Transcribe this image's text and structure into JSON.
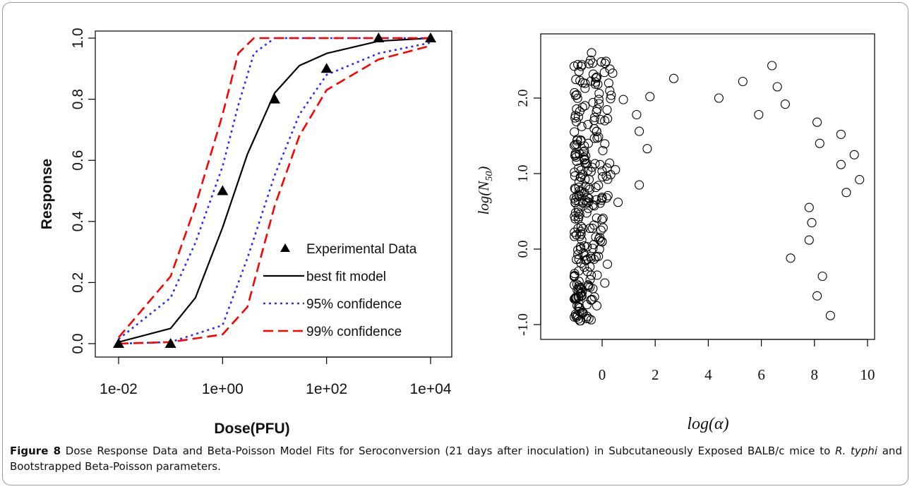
{
  "chart_data": [
    {
      "type": "line",
      "xlabel": "Dose(PFU)",
      "ylabel": "Response",
      "x_scale": "log10",
      "xlim": [
        0.01,
        10000
      ],
      "ylim": [
        0,
        1
      ],
      "x_ticks": [
        "1e-02",
        "1e+00",
        "1e+02",
        "1e+04"
      ],
      "x_tick_values": [
        0.01,
        1,
        100,
        10000
      ],
      "y_ticks": [
        "0.0",
        "0.2",
        "0.4",
        "0.6",
        "0.8",
        "1.0"
      ],
      "y_tick_values": [
        0.0,
        0.2,
        0.4,
        0.6,
        0.8,
        1.0
      ],
      "legend_position": "bottom-right",
      "series": [
        {
          "name": "Experimental Data",
          "style": "triangle-points",
          "color": "#000000",
          "x": [
            0.01,
            0.1,
            1,
            10,
            100,
            1000,
            10000
          ],
          "y": [
            0.0,
            0.0,
            0.5,
            0.8,
            0.9,
            1.0,
            1.0
          ]
        },
        {
          "name": "best fit model",
          "style": "solid",
          "color": "#000000",
          "x": [
            0.01,
            0.1,
            0.3,
            1,
            3,
            10,
            30,
            100,
            1000,
            10000
          ],
          "y": [
            0.005,
            0.05,
            0.15,
            0.38,
            0.62,
            0.82,
            0.91,
            0.95,
            0.99,
            1.0
          ]
        },
        {
          "name": "95% confidence",
          "style": "dotted",
          "color": "#2b2bff",
          "band": "upper",
          "x": [
            0.01,
            0.1,
            0.3,
            1,
            2,
            4,
            10,
            1000,
            10000
          ],
          "y": [
            0.015,
            0.15,
            0.33,
            0.58,
            0.78,
            0.95,
            1.0,
            1.0,
            1.0
          ]
        },
        {
          "name": "95% confidence",
          "style": "dotted",
          "color": "#2b2bff",
          "band": "lower",
          "x": [
            0.01,
            0.1,
            1,
            3,
            10,
            30,
            100,
            1000,
            10000
          ],
          "y": [
            0.0,
            0.005,
            0.06,
            0.28,
            0.55,
            0.75,
            0.88,
            0.95,
            0.985
          ]
        },
        {
          "name": "99% confidence",
          "style": "dashed",
          "color": "#ff0000",
          "band": "upper",
          "x": [
            0.01,
            0.1,
            0.3,
            1,
            2,
            4,
            10000
          ],
          "y": [
            0.02,
            0.22,
            0.45,
            0.75,
            0.95,
            1.0,
            1.0
          ]
        },
        {
          "name": "99% confidence",
          "style": "dashed",
          "color": "#ff0000",
          "band": "lower",
          "x": [
            0.01,
            0.1,
            1,
            3,
            10,
            30,
            100,
            1000,
            10000
          ],
          "y": [
            0.0,
            0.005,
            0.03,
            0.12,
            0.45,
            0.68,
            0.83,
            0.93,
            0.975
          ]
        }
      ]
    },
    {
      "type": "scatter",
      "xlabel": "log(α)",
      "ylabel": "log(N50)",
      "xlim": [
        -1.1,
        9.9
      ],
      "ylim": [
        -1.25,
        2.75
      ],
      "x_ticks": [
        "0",
        "2",
        "4",
        "6",
        "8",
        "10"
      ],
      "x_tick_values": [
        0,
        2,
        4,
        6,
        8,
        10
      ],
      "y_ticks": [
        "-1.0",
        "0.0",
        "1.0",
        "2.0"
      ],
      "y_tick_values": [
        -1.0,
        0.0,
        1.0,
        2.0
      ],
      "marker": "open-circle",
      "series": [
        {
          "x": [
            -0.4,
            -0.2,
            0.4,
            1.3,
            1.7,
            2.7,
            4.4,
            5.3,
            6.4,
            6.6,
            6.9,
            5.9,
            8.1,
            8.2,
            9.0,
            9.0,
            9.5,
            9.7,
            9.2,
            7.8,
            7.9,
            7.8,
            7.1,
            8.3,
            8.1,
            8.6,
            0.8,
            1.4,
            1.8,
            1.4,
            0.6,
            -0.9,
            -0.6,
            0.2,
            0.0,
            0.1,
            -0.2,
            -0.8,
            -0.5,
            0.5
          ],
          "y": [
            2.6,
            2.28,
            2.33,
            1.78,
            1.33,
            2.26,
            2.0,
            2.22,
            2.43,
            2.15,
            1.92,
            1.78,
            1.68,
            1.4,
            1.52,
            1.12,
            1.25,
            0.92,
            0.75,
            0.55,
            0.35,
            0.12,
            -0.12,
            -0.36,
            -0.62,
            -0.88,
            1.98,
            1.56,
            2.02,
            0.85,
            0.62,
            0.4,
            -0.15,
            -0.2,
            0.1,
            -0.45,
            -0.75,
            0.95,
            -0.92,
            1.05
          ]
        }
      ],
      "dense_cluster": {
        "x_range": [
          -1.05,
          0.35
        ],
        "y_range": [
          -0.95,
          2.6
        ]
      }
    }
  ],
  "caption": {
    "figure_label": "Figure 8",
    "text_part1": "Dose Response Data and Beta-Poisson Model Fits for Seroconversion (21 days after inoculation) in Subcutaneously Exposed BALB/c mice to ",
    "italic": "R. typhi",
    "text_part2": " and Bootstrapped Beta-Poisson parameters",
    "end": "."
  }
}
